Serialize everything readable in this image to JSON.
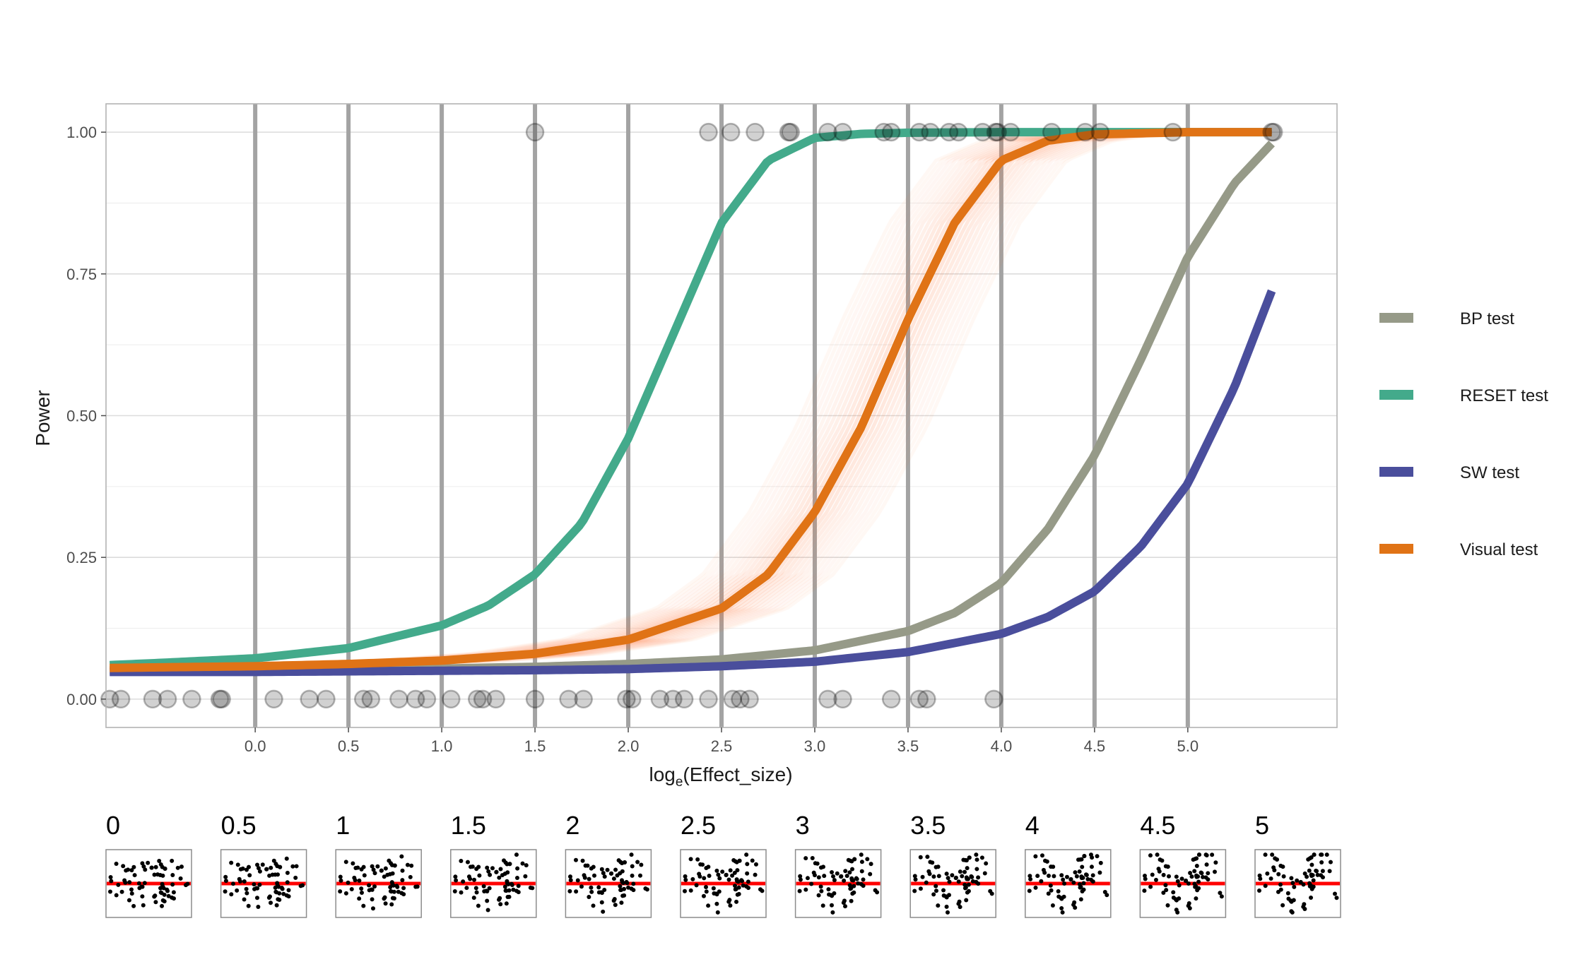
{
  "chart_data": {
    "type": "line",
    "xlabel_base": "log",
    "xlabel_sub": "e",
    "xlabel_rest": "(Effect_size)",
    "ylabel": "Power",
    "xlim": [
      -0.8,
      5.8
    ],
    "ylim": [
      -0.05,
      1.05
    ],
    "x_ticks": [
      {
        "value": 0,
        "label": "0.0"
      },
      {
        "value": 0.5,
        "label": "0.5"
      },
      {
        "value": 1,
        "label": "1.0"
      },
      {
        "value": 1.5,
        "label": "1.5"
      },
      {
        "value": 2,
        "label": "2.0"
      },
      {
        "value": 2.5,
        "label": "2.5"
      },
      {
        "value": 3,
        "label": "3.0"
      },
      {
        "value": 3.5,
        "label": "3.5"
      },
      {
        "value": 4,
        "label": "4.0"
      },
      {
        "value": 4.5,
        "label": "4.5"
      },
      {
        "value": 5,
        "label": "5.0"
      }
    ],
    "y_ticks": [
      {
        "value": 0,
        "label": "0.00"
      },
      {
        "value": 0.25,
        "label": "0.25"
      },
      {
        "value": 0.5,
        "label": "0.50"
      },
      {
        "value": 0.75,
        "label": "0.75"
      },
      {
        "value": 1,
        "label": "1.00"
      }
    ],
    "vlines": [
      0,
      0.5,
      1,
      1.5,
      2,
      2.5,
      3,
      3.5,
      4,
      4.5,
      5
    ],
    "x_range": [
      -0.78,
      5.45
    ],
    "series": [
      {
        "name": "BP test",
        "color": "#969a88",
        "x": [
          -0.78,
          0,
          0.5,
          1,
          1.5,
          2,
          2.5,
          3,
          3.5,
          3.75,
          4,
          4.25,
          4.5,
          4.75,
          5,
          5.25,
          5.45
        ],
        "y": [
          0.05,
          0.051,
          0.052,
          0.054,
          0.057,
          0.062,
          0.07,
          0.086,
          0.12,
          0.152,
          0.205,
          0.3,
          0.43,
          0.6,
          0.78,
          0.91,
          0.98
        ]
      },
      {
        "name": "RESET test",
        "color": "#43aa8b",
        "x": [
          -0.78,
          -0.5,
          0,
          0.5,
          1,
          1.25,
          1.5,
          1.75,
          2,
          2.25,
          2.5,
          2.75,
          3,
          3.25,
          3.5,
          4,
          4.5,
          5,
          5.45
        ],
        "y": [
          0.06,
          0.064,
          0.072,
          0.09,
          0.13,
          0.165,
          0.22,
          0.31,
          0.46,
          0.65,
          0.84,
          0.95,
          0.99,
          0.997,
          0.999,
          1.0,
          1.0,
          1.0,
          1.0
        ]
      },
      {
        "name": "SW test",
        "color": "#4a4e9c",
        "x": [
          -0.78,
          0,
          0.5,
          1,
          1.5,
          2,
          2.5,
          3,
          3.5,
          4,
          4.25,
          4.5,
          4.75,
          5,
          5.25,
          5.45
        ],
        "y": [
          0.048,
          0.048,
          0.049,
          0.05,
          0.051,
          0.053,
          0.058,
          0.066,
          0.083,
          0.115,
          0.145,
          0.19,
          0.27,
          0.38,
          0.55,
          0.72
        ]
      },
      {
        "name": "Visual test",
        "color": "#e07316",
        "x": [
          -0.78,
          0,
          0.5,
          1,
          1.5,
          2,
          2.5,
          2.75,
          3,
          3.25,
          3.5,
          3.75,
          4,
          4.25,
          4.5,
          5,
          5.45
        ],
        "y": [
          0.055,
          0.058,
          0.062,
          0.068,
          0.08,
          0.105,
          0.16,
          0.22,
          0.33,
          0.48,
          0.67,
          0.84,
          0.95,
          0.985,
          0.996,
          1.0,
          1.0
        ]
      }
    ],
    "band": {
      "color": "#ff6e2e",
      "center_shift_range": [
        -0.35,
        0.35
      ],
      "count": 28
    },
    "points": [
      {
        "x": -0.78,
        "y": 0
      },
      {
        "x": -0.72,
        "y": 0
      },
      {
        "x": -0.55,
        "y": 0
      },
      {
        "x": -0.47,
        "y": 0
      },
      {
        "x": -0.34,
        "y": 0
      },
      {
        "x": -0.19,
        "y": 0
      },
      {
        "x": -0.18,
        "y": 0
      },
      {
        "x": 0.1,
        "y": 0
      },
      {
        "x": 0.29,
        "y": 0
      },
      {
        "x": 0.38,
        "y": 0
      },
      {
        "x": 0.58,
        "y": 0
      },
      {
        "x": 0.62,
        "y": 0
      },
      {
        "x": 0.77,
        "y": 0
      },
      {
        "x": 0.86,
        "y": 0
      },
      {
        "x": 0.92,
        "y": 0
      },
      {
        "x": 1.05,
        "y": 0
      },
      {
        "x": 1.19,
        "y": 0
      },
      {
        "x": 1.22,
        "y": 0
      },
      {
        "x": 1.29,
        "y": 0
      },
      {
        "x": 1.5,
        "y": 0
      },
      {
        "x": 1.68,
        "y": 0
      },
      {
        "x": 1.76,
        "y": 0
      },
      {
        "x": 1.99,
        "y": 0
      },
      {
        "x": 2.02,
        "y": 0
      },
      {
        "x": 2.17,
        "y": 0
      },
      {
        "x": 2.24,
        "y": 0
      },
      {
        "x": 2.3,
        "y": 0
      },
      {
        "x": 2.43,
        "y": 0
      },
      {
        "x": 2.56,
        "y": 0
      },
      {
        "x": 2.6,
        "y": 0
      },
      {
        "x": 2.65,
        "y": 0
      },
      {
        "x": 3.07,
        "y": 0
      },
      {
        "x": 3.15,
        "y": 0
      },
      {
        "x": 3.41,
        "y": 0
      },
      {
        "x": 3.56,
        "y": 0
      },
      {
        "x": 3.6,
        "y": 0
      },
      {
        "x": 3.96,
        "y": 0
      },
      {
        "x": 1.5,
        "y": 1
      },
      {
        "x": 2.43,
        "y": 1
      },
      {
        "x": 2.55,
        "y": 1
      },
      {
        "x": 2.68,
        "y": 1
      },
      {
        "x": 2.86,
        "y": 1
      },
      {
        "x": 2.87,
        "y": 1
      },
      {
        "x": 3.07,
        "y": 1
      },
      {
        "x": 3.15,
        "y": 1
      },
      {
        "x": 3.37,
        "y": 1
      },
      {
        "x": 3.41,
        "y": 1
      },
      {
        "x": 3.56,
        "y": 1
      },
      {
        "x": 3.62,
        "y": 1
      },
      {
        "x": 3.72,
        "y": 1
      },
      {
        "x": 3.77,
        "y": 1
      },
      {
        "x": 3.9,
        "y": 1
      },
      {
        "x": 3.97,
        "y": 1
      },
      {
        "x": 3.98,
        "y": 1
      },
      {
        "x": 4.05,
        "y": 1
      },
      {
        "x": 4.27,
        "y": 1
      },
      {
        "x": 4.45,
        "y": 1
      },
      {
        "x": 4.53,
        "y": 1
      },
      {
        "x": 4.92,
        "y": 1
      },
      {
        "x": 5.45,
        "y": 1
      },
      {
        "x": 5.46,
        "y": 1
      }
    ]
  },
  "legend": {
    "items": [
      {
        "label": "BP test",
        "color": "#969a88"
      },
      {
        "label": "RESET test",
        "color": "#43aa8b"
      },
      {
        "label": "SW test",
        "color": "#4a4e9c"
      },
      {
        "label": "Visual test",
        "color": "#e07316"
      }
    ]
  },
  "panels": {
    "labels": [
      "0",
      "0.5",
      "1",
      "1.5",
      "2",
      "2.5",
      "3",
      "3.5",
      "4",
      "4.5",
      "5"
    ],
    "effect": [
      0,
      0.5,
      1,
      1.5,
      2,
      2.5,
      3,
      3.5,
      4,
      4.5,
      5
    ],
    "line_color": "#ff0000",
    "dot_color": "#000000"
  }
}
